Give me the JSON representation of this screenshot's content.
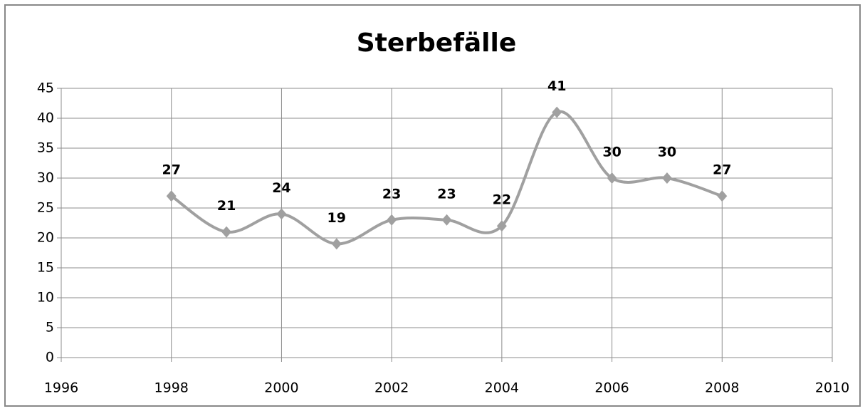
{
  "chart_data": {
    "type": "line",
    "title": "Sterbefälle",
    "x": [
      1998,
      1999,
      2000,
      2001,
      2002,
      2003,
      2004,
      2005,
      2006,
      2007,
      2008
    ],
    "series": [
      {
        "name": "Sterbefälle",
        "color": "#a0a0a0",
        "values": [
          27,
          21,
          24,
          19,
          23,
          23,
          22,
          41,
          30,
          30,
          27
        ]
      }
    ],
    "xlim": [
      1996,
      2010
    ],
    "xticks": [
      1996,
      1998,
      2000,
      2002,
      2004,
      2006,
      2008,
      2010
    ],
    "ylim": [
      0,
      45
    ],
    "yticks": [
      0,
      5,
      10,
      15,
      20,
      25,
      30,
      35,
      40,
      45
    ],
    "grid": true,
    "smooth": true,
    "data_labels": true
  }
}
